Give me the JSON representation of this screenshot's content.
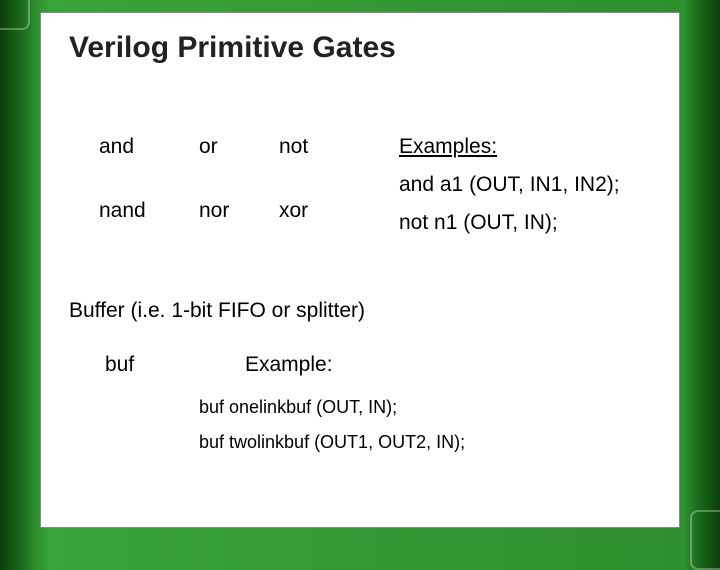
{
  "title": "Verilog Primitive Gates",
  "gates": {
    "r1c1": "and",
    "r1c2": "or",
    "r1c3": "not",
    "r2c1": "nand",
    "r2c2": "nor",
    "r2c3": "xor"
  },
  "examples": {
    "heading": "Examples:",
    "line1": "and a1  (OUT, IN1, IN2);",
    "line2": "not n1  (OUT, IN);"
  },
  "buffer": {
    "desc": "Buffer (i.e. 1-bit FIFO or splitter)",
    "label": "buf",
    "exampleLabel": "Example:",
    "ex1": "buf onelinkbuf (OUT, IN);",
    "ex2": "buf twolinkbuf (OUT1, OUT2, IN);"
  },
  "colors": {
    "bg_dark": "#0a3d0a",
    "bg_light": "#3aa33a",
    "panel": "#ffffff",
    "text": "#000000"
  }
}
